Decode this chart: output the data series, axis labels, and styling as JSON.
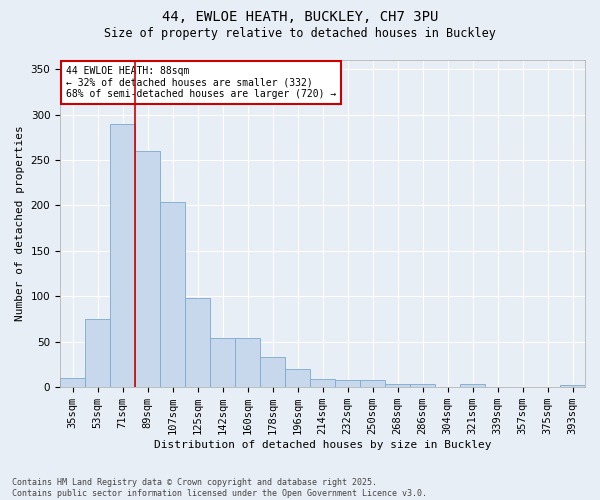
{
  "title_line1": "44, EWLOE HEATH, BUCKLEY, CH7 3PU",
  "title_line2": "Size of property relative to detached houses in Buckley",
  "xlabel": "Distribution of detached houses by size in Buckley",
  "ylabel": "Number of detached properties",
  "bar_color": "#c8d8ec",
  "bar_edge_color": "#7aaad0",
  "background_color": "#e8eef5",
  "grid_color": "#ffffff",
  "vline_color": "#cc0000",
  "vline_x_index": 2,
  "annotation_text": "44 EWLOE HEATH: 88sqm\n← 32% of detached houses are smaller (332)\n68% of semi-detached houses are larger (720) →",
  "annotation_box_facecolor": "#ffffff",
  "annotation_box_edgecolor": "#cc0000",
  "categories": [
    "35sqm",
    "53sqm",
    "71sqm",
    "89sqm",
    "107sqm",
    "125sqm",
    "142sqm",
    "160sqm",
    "178sqm",
    "196sqm",
    "214sqm",
    "232sqm",
    "250sqm",
    "268sqm",
    "286sqm",
    "304sqm",
    "321sqm",
    "339sqm",
    "357sqm",
    "375sqm",
    "393sqm"
  ],
  "values": [
    10,
    75,
    290,
    260,
    204,
    98,
    54,
    54,
    33,
    20,
    9,
    8,
    8,
    4,
    4,
    0,
    4,
    0,
    0,
    0,
    2
  ],
  "ylim": [
    0,
    360
  ],
  "yticks": [
    0,
    50,
    100,
    150,
    200,
    250,
    300,
    350
  ],
  "footnote": "Contains HM Land Registry data © Crown copyright and database right 2025.\nContains public sector information licensed under the Open Government Licence v3.0.",
  "figsize": [
    6.0,
    5.0
  ],
  "dpi": 100
}
